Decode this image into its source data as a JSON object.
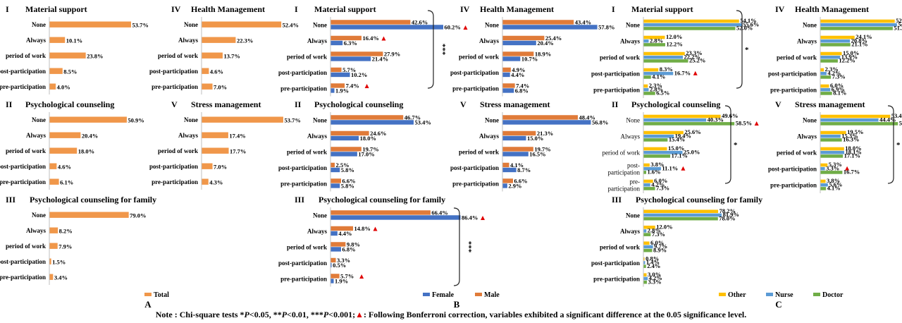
{
  "categories": [
    "None",
    "Always",
    "period of work",
    "post-participation",
    "pre-participation"
  ],
  "categories_c_wrapped": [
    "None",
    "Always",
    "period of work",
    "post-|participation",
    "pre-|participation"
  ],
  "colors": {
    "total": "#f0974a",
    "female": "#4472c4",
    "male": "#e07b39",
    "other": "#ffc000",
    "nurse": "#5b9bd5",
    "doctor": "#70ad47",
    "marker": "#e00000"
  },
  "panels": [
    {
      "id": "A",
      "label": "A",
      "legend": [
        {
          "name": "Total",
          "color": "total"
        }
      ]
    },
    {
      "id": "B",
      "label": "B",
      "legend": [
        {
          "name": "Female",
          "color": "female"
        },
        {
          "name": "Male",
          "color": "male"
        }
      ]
    },
    {
      "id": "C",
      "label": "C",
      "legend": [
        {
          "name": "Other",
          "color": "other"
        },
        {
          "name": "Nurse",
          "color": "nurse"
        },
        {
          "name": "Doctor",
          "color": "doctor"
        }
      ]
    }
  ],
  "chart_data": [
    {
      "panel": "A",
      "numeral": "I",
      "title": "Material support",
      "type": "bar",
      "series": [
        {
          "name": "Total",
          "color": "total",
          "values": [
            53.7,
            10.1,
            23.8,
            8.5,
            4.0
          ]
        }
      ]
    },
    {
      "panel": "A",
      "numeral": "IV",
      "title": "Health Management",
      "type": "bar",
      "series": [
        {
          "name": "Total",
          "color": "total",
          "values": [
            52.4,
            22.3,
            13.7,
            4.6,
            7.0
          ]
        }
      ]
    },
    {
      "panel": "A",
      "numeral": "II",
      "title": "Psychological counseling",
      "type": "bar",
      "series": [
        {
          "name": "Total",
          "color": "total",
          "values": [
            50.9,
            20.4,
            18.0,
            4.6,
            6.1
          ]
        }
      ]
    },
    {
      "panel": "A",
      "numeral": "V",
      "title": "Stress management",
      "type": "bar",
      "series": [
        {
          "name": "Total",
          "color": "total",
          "values": [
            53.7,
            17.4,
            17.7,
            7.0,
            4.3
          ]
        }
      ]
    },
    {
      "panel": "A",
      "numeral": "III",
      "title": "Psychological counseling for family",
      "type": "bar",
      "series": [
        {
          "name": "Total",
          "color": "total",
          "values": [
            79.0,
            8.2,
            7.9,
            1.5,
            3.4
          ]
        }
      ]
    },
    {
      "panel": "B",
      "numeral": "I",
      "title": "Material support",
      "type": "bar",
      "sig": "***",
      "series": [
        {
          "name": "Male",
          "color": "male",
          "values": [
            42.6,
            16.4,
            27.9,
            5.7,
            7.4
          ],
          "marks": [
            false,
            true,
            false,
            false,
            true
          ]
        },
        {
          "name": "Female",
          "color": "female",
          "values": [
            60.2,
            6.3,
            21.4,
            10.2,
            1.9
          ],
          "marks": [
            true,
            false,
            false,
            false,
            false
          ]
        }
      ]
    },
    {
      "panel": "B",
      "numeral": "IV",
      "title": "Health Management",
      "type": "bar",
      "series": [
        {
          "name": "Male",
          "color": "male",
          "values": [
            43.4,
            25.4,
            18.9,
            4.9,
            7.4
          ]
        },
        {
          "name": "Female",
          "color": "female",
          "values": [
            57.8,
            20.4,
            10.7,
            4.4,
            6.8
          ]
        }
      ]
    },
    {
      "panel": "B",
      "numeral": "II",
      "title": "Psychological counseling",
      "type": "bar",
      "series": [
        {
          "name": "Male",
          "color": "male",
          "values": [
            46.7,
            24.6,
            19.7,
            2.5,
            6.6
          ]
        },
        {
          "name": "Female",
          "color": "female",
          "values": [
            53.4,
            18.0,
            17.0,
            5.8,
            5.8
          ]
        }
      ]
    },
    {
      "panel": "B",
      "numeral": "V",
      "title": "Stress management",
      "type": "bar",
      "series": [
        {
          "name": "Male",
          "color": "male",
          "values": [
            48.4,
            21.3,
            19.7,
            4.1,
            6.6
          ]
        },
        {
          "name": "Female",
          "color": "female",
          "values": [
            56.8,
            15.0,
            16.5,
            8.7,
            2.9
          ]
        }
      ]
    },
    {
      "panel": "B",
      "numeral": "III",
      "title": "Psychological counseling for family",
      "type": "bar",
      "sig": "***",
      "series": [
        {
          "name": "Male",
          "color": "male",
          "values": [
            66.4,
            14.8,
            9.8,
            3.3,
            5.7
          ],
          "marks": [
            false,
            true,
            false,
            false,
            true
          ]
        },
        {
          "name": "Female",
          "color": "female",
          "values": [
            86.4,
            4.4,
            6.8,
            0.5,
            1.9
          ],
          "marks": [
            true,
            false,
            false,
            false,
            false
          ]
        }
      ]
    },
    {
      "panel": "C",
      "numeral": "I",
      "title": "Material support",
      "type": "bar",
      "sig": "*",
      "series": [
        {
          "name": "Other",
          "color": "other",
          "values": [
            54.1,
            12.0,
            23.3,
            8.3,
            2.3
          ]
        },
        {
          "name": "Nurse",
          "color": "nurse",
          "values": [
            55.6,
            2.8,
            22.2,
            16.7,
            2.8
          ],
          "marks": [
            false,
            false,
            false,
            true,
            false
          ]
        },
        {
          "name": "Doctor",
          "color": "doctor",
          "values": [
            52.0,
            12.2,
            25.2,
            4.1,
            6.5
          ]
        }
      ]
    },
    {
      "panel": "C",
      "numeral": "IV",
      "title": "Health Management",
      "type": "bar",
      "series": [
        {
          "name": "Other",
          "color": "other",
          "values": [
            52.6,
            24.1,
            15.0,
            2.3,
            6.0
          ]
        },
        {
          "name": "Nurse",
          "color": "nurse",
          "values": [
            54.2,
            20.8,
            13.9,
            4.2,
            6.9
          ]
        },
        {
          "name": "Doctor",
          "color": "doctor",
          "values": [
            51.2,
            21.1,
            12.2,
            7.3,
            8.1
          ]
        }
      ]
    },
    {
      "panel": "C",
      "numeral": "II",
      "title": "Psychological counseling",
      "type": "bar",
      "sig": "*",
      "series": [
        {
          "name": "Other",
          "color": "other",
          "values": [
            49.6,
            25.6,
            15.0,
            3.8,
            6.0
          ]
        },
        {
          "name": "Nurse",
          "color": "nurse",
          "values": [
            40.3,
            19.4,
            25.0,
            11.1,
            4.2
          ],
          "marks": [
            false,
            false,
            false,
            true,
            false
          ]
        },
        {
          "name": "Doctor",
          "color": "doctor",
          "values": [
            58.5,
            15.4,
            17.1,
            1.6,
            7.3
          ],
          "marks": [
            true,
            false,
            false,
            false,
            false
          ]
        }
      ]
    },
    {
      "panel": "C",
      "numeral": "V",
      "title": "Stress management",
      "type": "bar",
      "sig": "*",
      "series": [
        {
          "name": "Other",
          "color": "other",
          "values": [
            53.4,
            19.5,
            18.0,
            5.3,
            3.8
          ]
        },
        {
          "name": "Nurse",
          "color": "nurse",
          "values": [
            44.4,
            15.3,
            18.1,
            3.3,
            5.6
          ],
          "marks": [
            false,
            false,
            false,
            true,
            false
          ]
        },
        {
          "name": "Doctor",
          "color": "doctor",
          "values": [
            59.3,
            16.3,
            17.1,
            16.7,
            4.1
          ]
        }
      ]
    },
    {
      "panel": "C",
      "numeral": "III",
      "title": "Psychological counseling for family",
      "type": "bar",
      "series": [
        {
          "name": "Other",
          "color": "other",
          "values": [
            78.2,
            12.0,
            6.0,
            0.8,
            3.0
          ]
        },
        {
          "name": "Nurse",
          "color": "nurse",
          "values": [
            81.9,
            2.8,
            9.7,
            1.4,
            4.2
          ]
        },
        {
          "name": "Doctor",
          "color": "doctor",
          "values": [
            78.0,
            7.3,
            8.9,
            2.4,
            3.3
          ]
        }
      ]
    }
  ],
  "note": {
    "prefix": "Note : Chi-square tests ",
    "sig1": "*",
    "p1": "P",
    "t1": "<0.05, ",
    "sig2": "**",
    "p2": "P",
    "t2": "<0.01, ",
    "sig3": "***",
    "p3": "P",
    "t3": "<0.001;",
    "triangle": "▲",
    "suffix": ": Following Bonferroni correction, variables exhibited a significant difference at the 0.05 significance level."
  }
}
